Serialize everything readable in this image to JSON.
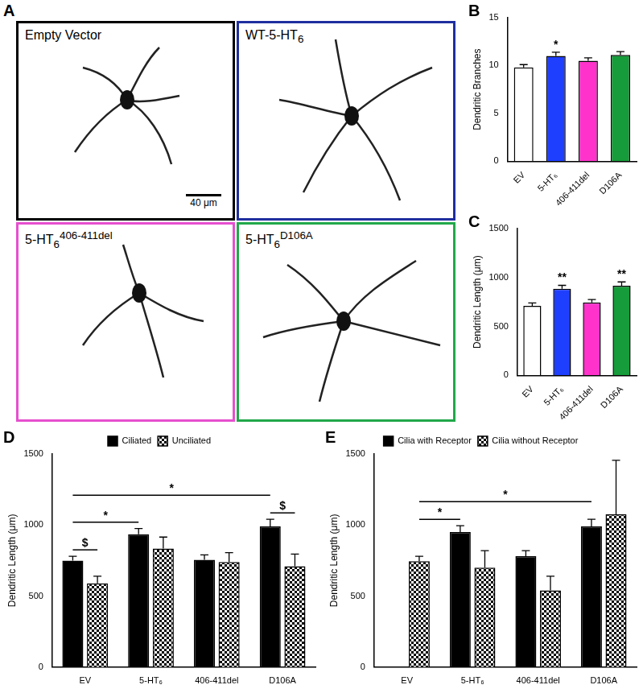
{
  "panel_a": {
    "panel": "A",
    "images": [
      {
        "label": {
          "text": "Empty Vector"
        },
        "color": "#000000",
        "scale_bar": "40 μm"
      },
      {
        "label": {
          "text": "WT-5-HT",
          "sub": "6"
        },
        "color": "#1f2f9f"
      },
      {
        "label": {
          "text": "5-HT",
          "sub": "6",
          "sup": "406-411del"
        },
        "color": "#e64fcf"
      },
      {
        "label": {
          "text": "5-HT",
          "sub": "6",
          "sup": "D106A"
        },
        "color": "#22a84a"
      }
    ]
  },
  "chart_data": [
    {
      "panel": "B",
      "type": "bar",
      "y_label": "Dendritic Branches",
      "categories": [
        "EV",
        "5-HT₆",
        "406-411del",
        "D106A"
      ],
      "values": [
        9.8,
        11.0,
        10.5,
        11.1
      ],
      "errors": [
        0.3,
        0.4,
        0.3,
        0.35
      ],
      "colors": [
        "#ffffff",
        "#1f3fff",
        "#ff33cc",
        "#169c3a"
      ],
      "ylim": [
        0,
        15
      ],
      "yticks": [
        0,
        5,
        10,
        15
      ],
      "grid": false,
      "annotations": [
        {
          "text": "*",
          "category": "5-HT₆"
        }
      ]
    },
    {
      "panel": "C",
      "type": "bar",
      "y_label": "Dendritic Length (μm)",
      "categories": [
        "EV",
        "5-HT₆",
        "406-411del",
        "D106A"
      ],
      "values": [
        710,
        885,
        745,
        915
      ],
      "errors": [
        30,
        35,
        30,
        40
      ],
      "colors": [
        "#ffffff",
        "#1f3fff",
        "#ff33cc",
        "#169c3a"
      ],
      "ylim": [
        0,
        1500
      ],
      "yticks": [
        0,
        500,
        1000,
        1500
      ],
      "grid": false,
      "annotations": [
        {
          "text": "**",
          "category": "5-HT₆"
        },
        {
          "text": "**",
          "category": "D106A"
        }
      ]
    },
    {
      "panel": "D",
      "type": "bar",
      "y_label": "Dendritic Length (μm)",
      "categories": [
        "EV",
        "5-HT₆",
        "406-411del",
        "D106A"
      ],
      "series": [
        {
          "name": "Ciliated",
          "color": "#000000",
          "marker": "solid",
          "values": [
            750,
            935,
            755,
            990
          ],
          "errors": [
            30,
            40,
            35,
            50
          ]
        },
        {
          "name": "Unciliated",
          "color": "#000000",
          "marker": "checkered",
          "values": [
            590,
            835,
            740,
            710
          ],
          "errors": [
            50,
            80,
            65,
            85
          ]
        }
      ],
      "ylim": [
        0,
        1500
      ],
      "yticks": [
        0,
        500,
        1000,
        1500
      ],
      "grid": false,
      "legend": "top",
      "annotations": [
        {
          "text": "$",
          "from": [
            "EV",
            "Ciliated"
          ],
          "to": [
            "EV",
            "Unciliated"
          ]
        },
        {
          "text": "$",
          "from": [
            "D106A",
            "Ciliated"
          ],
          "to": [
            "D106A",
            "Unciliated"
          ]
        },
        {
          "text": "*",
          "from": [
            "EV",
            "Ciliated"
          ],
          "to": [
            "5-HT₆",
            "Ciliated"
          ]
        },
        {
          "text": "*",
          "from": [
            "EV",
            "Ciliated"
          ],
          "to": [
            "D106A",
            "Ciliated"
          ]
        }
      ]
    },
    {
      "panel": "E",
      "type": "bar",
      "y_label": "Dendritic Length (μm)",
      "categories": [
        "EV",
        "5-HT₆",
        "406-411del",
        "D106A"
      ],
      "series": [
        {
          "name": "Cilia with Receptor",
          "color": "#000000",
          "marker": "solid",
          "values": [
            null,
            950,
            780,
            990
          ],
          "errors": [
            null,
            45,
            40,
            50
          ]
        },
        {
          "name": "Cilia without Receptor",
          "color": "#000000",
          "marker": "checkered",
          "values": [
            745,
            700,
            540,
            1075
          ],
          "errors": [
            35,
            120,
            100,
            380
          ]
        }
      ],
      "ylim": [
        0,
        1500
      ],
      "yticks": [
        0,
        500,
        1000,
        1500
      ],
      "grid": false,
      "legend": "top",
      "annotations": [
        {
          "text": "*",
          "from": [
            "EV",
            "Cilia without Receptor"
          ],
          "to": [
            "5-HT₆",
            "Cilia with Receptor"
          ]
        },
        {
          "text": "*",
          "from": [
            "EV",
            "Cilia without Receptor"
          ],
          "to": [
            "D106A",
            "Cilia with Receptor"
          ]
        }
      ]
    }
  ]
}
